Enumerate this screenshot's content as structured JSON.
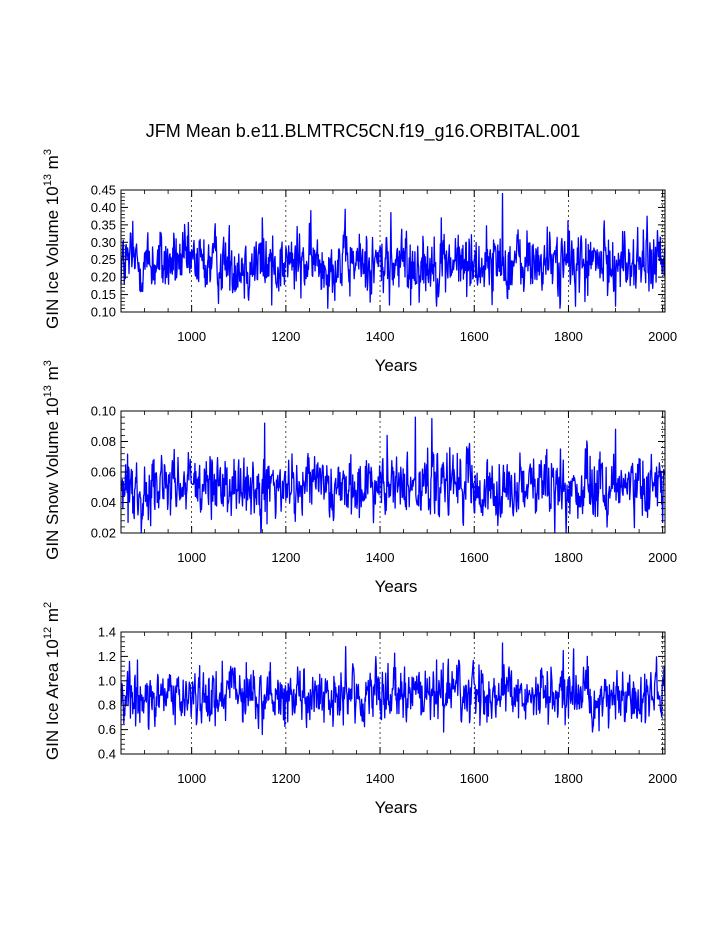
{
  "title": "JFM Mean b.e11.BLMTRC5CN.f19_g16.ORBITAL.001",
  "colors": {
    "series": "#0000ff",
    "axis": "#000000",
    "grid": "#000000"
  },
  "chart_data": [
    {
      "type": "line",
      "name": "ice-volume",
      "xlabel": "Years",
      "ylabel_main": "GIN Ice Volume 10",
      "ylabel_sup1": "13",
      "ylabel_unit": " m",
      "ylabel_sup2": "3",
      "xlim": [
        850,
        2005
      ],
      "ylim": [
        0.1,
        0.45
      ],
      "xticks": [
        1000,
        1200,
        1400,
        1600,
        1800,
        2000
      ],
      "yticks": [
        0.1,
        0.15,
        0.2,
        0.25,
        0.3,
        0.35,
        0.4,
        0.45
      ],
      "ytick_labels": [
        "0.10",
        "0.15",
        "0.20",
        "0.25",
        "0.30",
        "0.35",
        "0.40",
        "0.45"
      ],
      "series_mean": 0.24,
      "series_spread": 0.045,
      "x_start": 850,
      "x_end": 2005,
      "peaks": [
        [
          1660,
          0.44
        ],
        [
          1423,
          0.385
        ],
        [
          1150,
          0.37
        ],
        [
          1530,
          0.37
        ],
        [
          875,
          0.36
        ]
      ],
      "troughs": [
        [
          1420,
          0.12
        ],
        [
          1465,
          0.12
        ],
        [
          1170,
          0.12
        ],
        [
          1835,
          0.13
        ]
      ]
    },
    {
      "type": "line",
      "name": "snow-volume",
      "xlabel": "Years",
      "ylabel_main": "GIN Snow Volume 10",
      "ylabel_sup1": "13",
      "ylabel_unit": " m",
      "ylabel_sup2": "3",
      "xlim": [
        850,
        2005
      ],
      "ylim": [
        0.02,
        0.1
      ],
      "xticks": [
        1000,
        1200,
        1400,
        1600,
        1800,
        2000
      ],
      "yticks": [
        0.02,
        0.04,
        0.06,
        0.08,
        0.1
      ],
      "ytick_labels": [
        "0.02",
        "0.04",
        "0.06",
        "0.08",
        "0.10"
      ],
      "series_mean": 0.05,
      "series_spread": 0.01,
      "x_start": 850,
      "x_end": 2005,
      "peaks": [
        [
          1155,
          0.092
        ],
        [
          1475,
          0.096
        ],
        [
          1510,
          0.095
        ],
        [
          1415,
          0.084
        ],
        [
          1900,
          0.088
        ]
      ],
      "troughs": [
        [
          1160,
          0.026
        ],
        [
          865,
          0.027
        ],
        [
          2000,
          0.027
        ]
      ]
    },
    {
      "type": "line",
      "name": "ice-area",
      "xlabel": "Years",
      "ylabel_main": "GIN Ice Area 10",
      "ylabel_sup1": "12",
      "ylabel_unit": " m",
      "ylabel_sup2": "2",
      "xlim": [
        850,
        2005
      ],
      "ylim": [
        0.4,
        1.4
      ],
      "xticks": [
        1000,
        1200,
        1400,
        1600,
        1800,
        2000
      ],
      "yticks": [
        0.4,
        0.6,
        0.8,
        1.0,
        1.2,
        1.4
      ],
      "ytick_labels": [
        "0.4",
        "0.6",
        "0.8",
        "1.0",
        "1.2",
        "1.4"
      ],
      "series_mean": 0.88,
      "series_spread": 0.11,
      "x_start": 850,
      "x_end": 2005,
      "peaks": [
        [
          1660,
          1.31
        ],
        [
          1840,
          1.2
        ],
        [
          1065,
          1.16
        ],
        [
          885,
          1.17
        ],
        [
          1520,
          1.17
        ]
      ],
      "troughs": [
        [
          1535,
          0.58
        ],
        [
          1010,
          0.64
        ],
        [
          1195,
          0.68
        ]
      ]
    }
  ]
}
